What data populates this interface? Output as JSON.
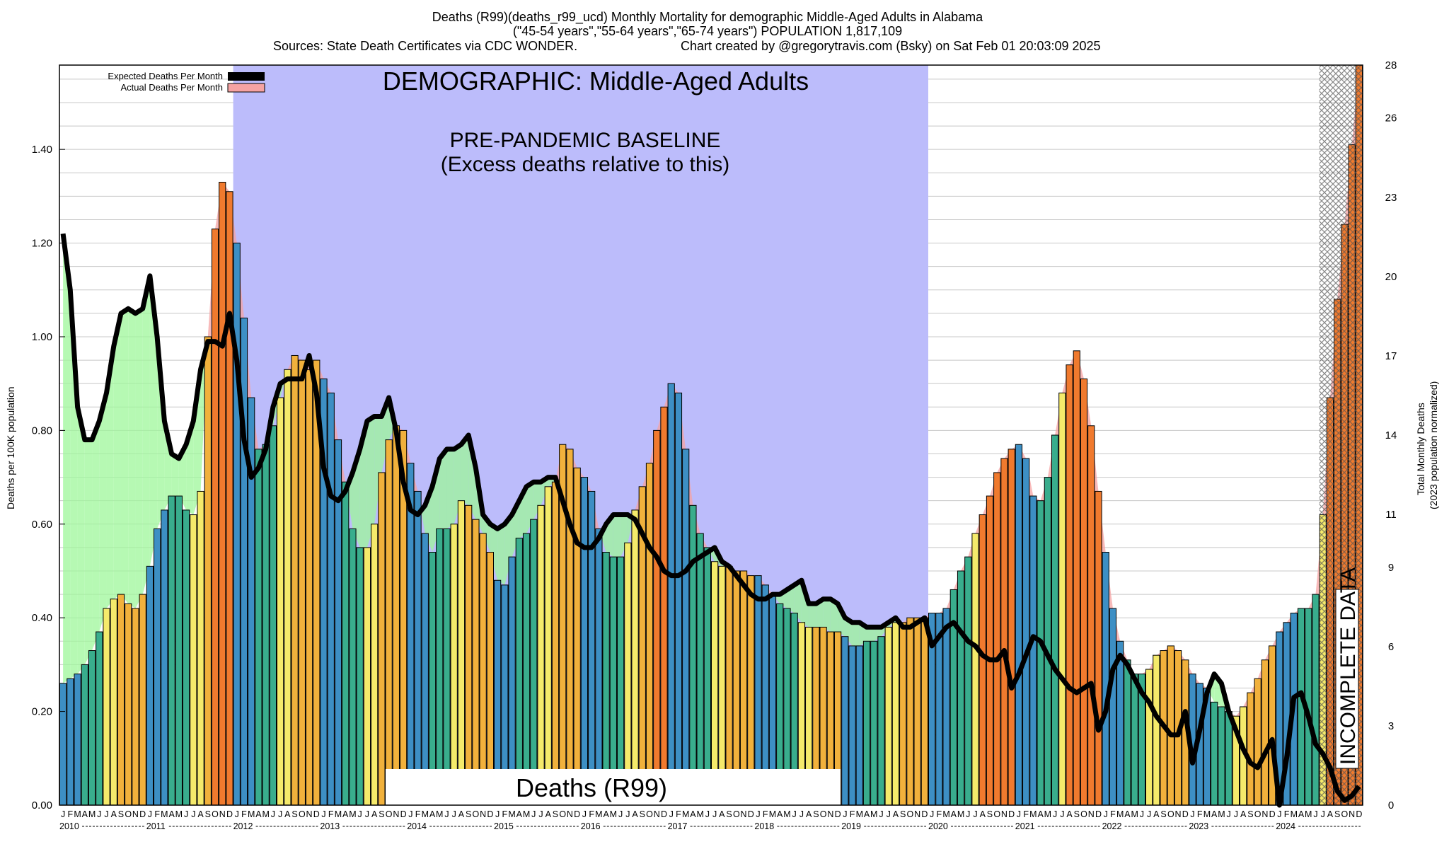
{
  "title": {
    "line1": "Deaths (R99)(deaths_r99_ucd) Monthly Mortality for demographic Middle-Aged Adults in Alabama",
    "line2": "(\"45-54 years\",\"55-64 years\",\"65-74 years\") POPULATION 1,817,109",
    "line3_left": "Sources: State Death Certificates via CDC WONDER.",
    "line3_right": "Chart created by @gregorytravis.com (Bsky) on Sat Feb 01 20:03:09 2025"
  },
  "annotations": {
    "demographic": "DEMOGRAPHIC: Middle-Aged Adults",
    "baseline_1": "PRE-PANDEMIC BASELINE",
    "baseline_2": "(Excess deaths relative to this)",
    "cause": "Deaths (R99)",
    "incomplete": "INCOMPLETE DATA"
  },
  "colors": {
    "baseline_region": "#bcbcfb",
    "deficit_fill": "#9ef79a",
    "excess_fill": "#f6a3a3",
    "q1": "#3d8fc4",
    "q2": "#39ad8d",
    "summer": "#f5ea6b",
    "fall": "#f1b13c",
    "excess_bar": "#f07a2e",
    "expected_line": "#000000"
  },
  "chart_data": {
    "type": "bar+line",
    "ylabel": "Deaths per 100K population",
    "ylabel_right_1": "Total Monthly Deaths",
    "ylabel_right_2": "(2023 population normalized)",
    "ylim": [
      0,
      1.58
    ],
    "yticks": [
      "0.00",
      "0.20",
      "0.40",
      "0.60",
      "0.80",
      "1.00",
      "1.20",
      "1.40"
    ],
    "yticks_right": [
      "0",
      "3",
      "6",
      "9",
      "11",
      "14",
      "17",
      "20",
      "23",
      "26",
      "28"
    ],
    "ylim_right": [
      0,
      28
    ],
    "grid": true,
    "legend_position": "top-left",
    "legend": [
      "Expected Deaths Per Month",
      "Actual Deaths Per Month"
    ],
    "month_letters": [
      "J",
      "F",
      "M",
      "A",
      "M",
      "J",
      "J",
      "A",
      "S",
      "O",
      "N",
      "D"
    ],
    "years": [
      "2010",
      "2011",
      "2012",
      "2013",
      "2014",
      "2015",
      "2016",
      "2017",
      "2018",
      "2019",
      "2020",
      "2021",
      "2022",
      "2023",
      "2024"
    ],
    "baseline_years": [
      "2012",
      "2019"
    ],
    "incomplete_months": 6,
    "series": [
      {
        "name": "Actual Deaths Per Month",
        "values": [
          0.26,
          0.27,
          0.28,
          0.3,
          0.33,
          0.37,
          0.42,
          0.44,
          0.45,
          0.43,
          0.42,
          0.45,
          0.51,
          0.59,
          0.63,
          0.66,
          0.66,
          0.63,
          0.62,
          0.67,
          1.0,
          1.23,
          1.33,
          1.31,
          1.2,
          1.04,
          0.87,
          0.76,
          0.77,
          0.81,
          0.87,
          0.93,
          0.96,
          0.95,
          0.93,
          0.95,
          0.91,
          0.88,
          0.78,
          0.69,
          0.59,
          0.55,
          0.55,
          0.6,
          0.71,
          0.78,
          0.81,
          0.8,
          0.73,
          0.67,
          0.58,
          0.54,
          0.59,
          0.59,
          0.6,
          0.65,
          0.64,
          0.61,
          0.58,
          0.54,
          0.48,
          0.47,
          0.53,
          0.57,
          0.58,
          0.61,
          0.64,
          0.68,
          0.69,
          0.77,
          0.76,
          0.72,
          0.7,
          0.67,
          0.59,
          0.54,
          0.53,
          0.53,
          0.56,
          0.63,
          0.68,
          0.73,
          0.8,
          0.85,
          0.9,
          0.88,
          0.76,
          0.64,
          0.58,
          0.55,
          0.52,
          0.51,
          0.51,
          0.5,
          0.5,
          0.49,
          0.49,
          0.47,
          0.45,
          0.43,
          0.42,
          0.41,
          0.39,
          0.38,
          0.38,
          0.38,
          0.37,
          0.37,
          0.36,
          0.34,
          0.34,
          0.35,
          0.35,
          0.36,
          0.38,
          0.39,
          0.39,
          0.4,
          0.4,
          0.4,
          0.41,
          0.41,
          0.42,
          0.46,
          0.5,
          0.53,
          0.58,
          0.62,
          0.66,
          0.71,
          0.74,
          0.76,
          0.77,
          0.74,
          0.66,
          0.65,
          0.7,
          0.79,
          0.88,
          0.94,
          0.97,
          0.91,
          0.81,
          0.67,
          0.54,
          0.42,
          0.35,
          0.31,
          0.28,
          0.28,
          0.29,
          0.32,
          0.33,
          0.34,
          0.33,
          0.31,
          0.28,
          0.26,
          0.25,
          0.22,
          0.21,
          0.2,
          0.19,
          0.21,
          0.24,
          0.27,
          0.31,
          0.34,
          0.37,
          0.39,
          0.41,
          0.42,
          0.42,
          0.45,
          0.62,
          0.87,
          1.08,
          1.24,
          1.41,
          1.58
        ]
      },
      {
        "name": "Expected Deaths Per Month",
        "values": [
          1.22,
          1.1,
          0.85,
          0.78,
          0.78,
          0.82,
          0.88,
          0.98,
          1.05,
          1.06,
          1.05,
          1.06,
          1.13,
          1.0,
          0.82,
          0.75,
          0.74,
          0.77,
          0.82,
          0.93,
          0.99,
          0.99,
          0.98,
          1.05,
          0.95,
          0.78,
          0.7,
          0.72,
          0.76,
          0.85,
          0.9,
          0.91,
          0.91,
          0.91,
          0.96,
          0.88,
          0.72,
          0.66,
          0.65,
          0.67,
          0.71,
          0.76,
          0.82,
          0.83,
          0.83,
          0.87,
          0.8,
          0.69,
          0.63,
          0.62,
          0.64,
          0.68,
          0.74,
          0.76,
          0.76,
          0.77,
          0.79,
          0.72,
          0.62,
          0.6,
          0.59,
          0.6,
          0.62,
          0.65,
          0.68,
          0.69,
          0.69,
          0.7,
          0.7,
          0.65,
          0.6,
          0.56,
          0.55,
          0.55,
          0.57,
          0.6,
          0.62,
          0.62,
          0.62,
          0.61,
          0.58,
          0.55,
          0.53,
          0.5,
          0.49,
          0.49,
          0.5,
          0.52,
          0.53,
          0.54,
          0.55,
          0.52,
          0.51,
          0.49,
          0.47,
          0.45,
          0.44,
          0.44,
          0.45,
          0.45,
          0.46,
          0.47,
          0.48,
          0.43,
          0.43,
          0.44,
          0.44,
          0.43,
          0.4,
          0.39,
          0.39,
          0.38,
          0.38,
          0.38,
          0.39,
          0.4,
          0.38,
          0.38,
          0.39,
          0.4,
          0.34,
          0.36,
          0.38,
          0.39,
          0.37,
          0.35,
          0.34,
          0.32,
          0.31,
          0.31,
          0.33,
          0.25,
          0.28,
          0.32,
          0.36,
          0.35,
          0.32,
          0.29,
          0.27,
          0.25,
          0.24,
          0.25,
          0.26,
          0.16,
          0.2,
          0.29,
          0.32,
          0.3,
          0.27,
          0.24,
          0.22,
          0.19,
          0.17,
          0.15,
          0.15,
          0.2,
          0.09,
          0.16,
          0.24,
          0.28,
          0.26,
          0.2,
          0.16,
          0.12,
          0.09,
          0.08,
          0.11,
          0.14,
          0.0,
          0.1,
          0.23,
          0.24,
          0.19,
          0.13,
          0.11,
          0.08,
          0.03,
          0.01,
          0.02,
          0.04
        ]
      }
    ]
  }
}
